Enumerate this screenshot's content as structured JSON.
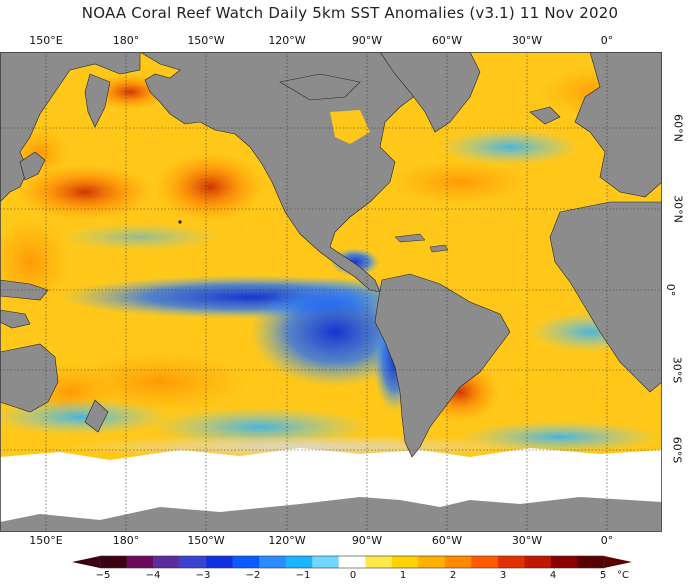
{
  "title": "NOAA Coral Reef Watch Daily 5km SST Anomalies  (v3.1)   11 Nov 2020",
  "lon_labels_top": [
    "150°E",
    "180°",
    "150°W",
    "120°W",
    "90°W",
    "60°W",
    "30°W",
    "0°"
  ],
  "lon_labels_bottom": [
    "150°E",
    "180°",
    "150°W",
    "120°W",
    "90°W",
    "60°W",
    "30°W",
    "0°"
  ],
  "lat_labels": [
    "60°N",
    "30°N",
    "0°",
    "30°S",
    "60°S"
  ],
  "colorbar": {
    "ticks": [
      "−5",
      "−4",
      "−3",
      "−2",
      "−1",
      "0",
      "1",
      "2",
      "3",
      "4",
      "5"
    ],
    "unit": "°C",
    "colors": [
      "#3b0011",
      "#6b0a5c",
      "#5a2ca0",
      "#3a43d0",
      "#1030e0",
      "#0b5cff",
      "#2a8cff",
      "#1ab4ff",
      "#70d8ff",
      "#ffffff",
      "#ffe94a",
      "#ffd200",
      "#ffb000",
      "#ff8a00",
      "#ff5a00",
      "#e43000",
      "#c01800",
      "#8a0000",
      "#5a0000"
    ]
  },
  "colors": {
    "land": "#8c8c8c",
    "ice": "#ffffff",
    "ocean_warm": "#ffcc1f",
    "ocean_cool": "#3a86ff",
    "grid": "#333333"
  }
}
